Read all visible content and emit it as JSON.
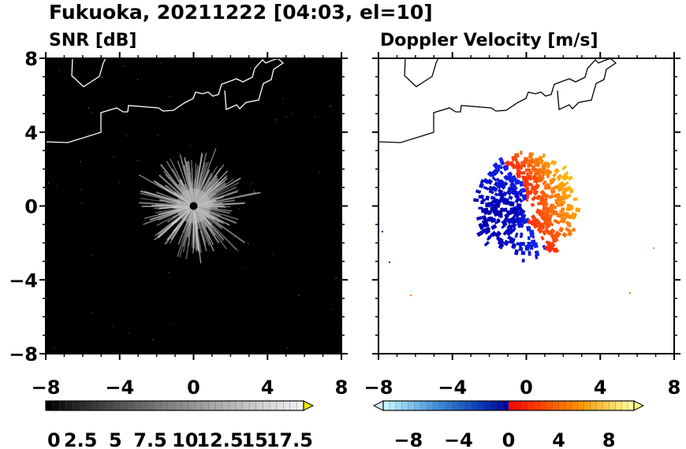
{
  "title": "Fukuoka, 20211222 [04:03, el=10]",
  "chart_data": [
    {
      "type": "heatmap",
      "title": "SNR [dB]",
      "xlim": [
        -8,
        8
      ],
      "ylim": [
        -8,
        8
      ],
      "xticks": [
        "−8",
        "−4",
        "0",
        "4",
        "8"
      ],
      "yticks": [
        "8",
        "4",
        "0",
        "−4",
        "−8"
      ],
      "colorbar": {
        "min": 0,
        "max": 18.5,
        "tick_labels": [
          "0",
          "2.5",
          "5",
          "7.5",
          "10",
          "12.5",
          "15",
          "17.5"
        ],
        "colors": [
          "#000000",
          "#ffffff",
          "#f2e600"
        ]
      }
    },
    {
      "type": "heatmap",
      "title": "Doppler Velocity [m/s]",
      "xlim": [
        -8,
        8
      ],
      "ylim": [
        -8,
        8
      ],
      "xticks": [
        "−8",
        "−4",
        "0",
        "4",
        "8"
      ],
      "yticks": [
        "8",
        "4",
        "0",
        "−4",
        "−8"
      ],
      "colorbar": {
        "min": -10,
        "max": 10,
        "tick_labels": [
          "−8",
          "−4",
          "0",
          "4",
          "8"
        ],
        "colors": [
          "#d9f7ff",
          "#0000b0",
          "#ff0000",
          "#ffff80"
        ]
      }
    }
  ]
}
